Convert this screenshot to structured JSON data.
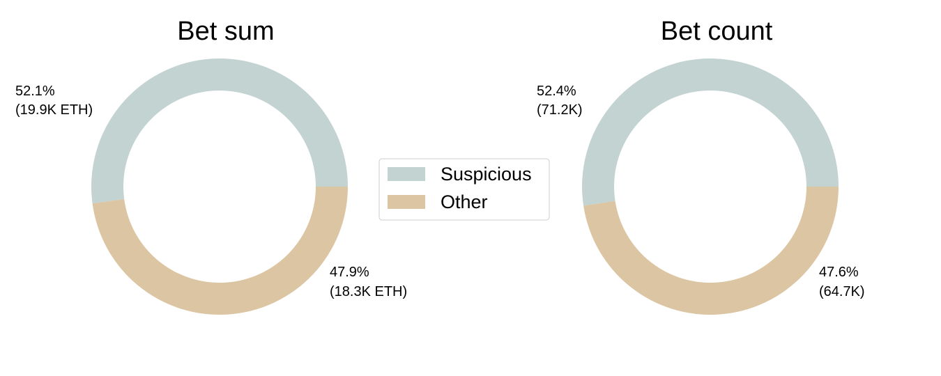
{
  "colors": {
    "suspicious": "#c2d3d1",
    "other": "#dcc5a3"
  },
  "legend": {
    "items": [
      {
        "label": "Suspicious",
        "color": "#c2d3d1"
      },
      {
        "label": "Other",
        "color": "#dcc5a3"
      }
    ]
  },
  "chart_data": [
    {
      "type": "pie",
      "style": "donut",
      "title": "Bet sum",
      "categories": [
        "Suspicious",
        "Other"
      ],
      "values": [
        19.9,
        18.3
      ],
      "unit": "K ETH",
      "percent_labels": [
        "52.1%",
        "47.9%"
      ],
      "value_labels": [
        "(19.9K ETH)",
        "(18.3K ETH)"
      ]
    },
    {
      "type": "pie",
      "style": "donut",
      "title": "Bet count",
      "categories": [
        "Suspicious",
        "Other"
      ],
      "values": [
        71.2,
        64.7
      ],
      "unit": "K",
      "percent_labels": [
        "52.4%",
        "47.6%"
      ],
      "value_labels": [
        "(71.2K)",
        "(64.7K)"
      ]
    }
  ]
}
